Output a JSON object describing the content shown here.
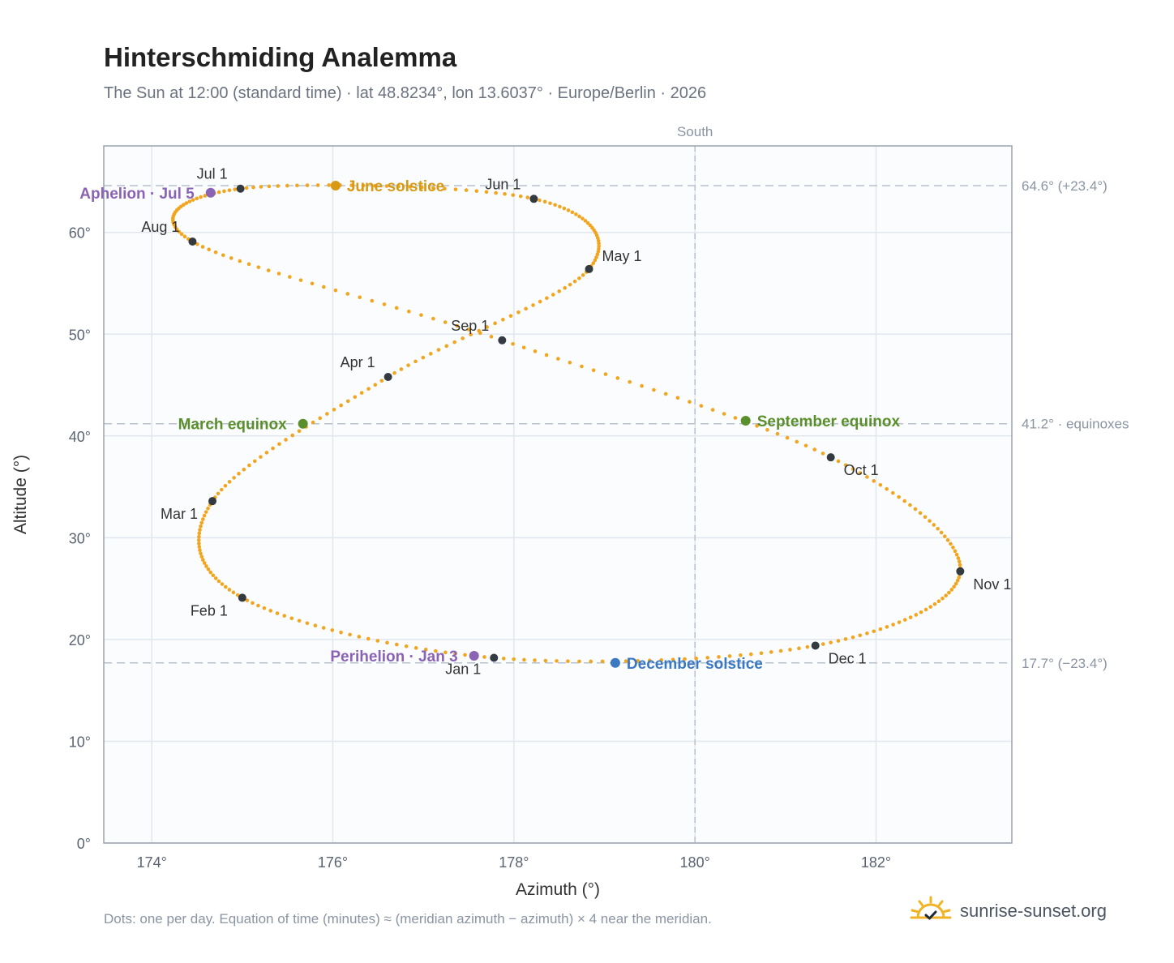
{
  "title": "Hinterschmiding Analemma",
  "subtitle": "The Sun at 12:00 (standard time) · lat 48.8234°, lon 13.6037° · Europe/Berlin · 2026",
  "footnote": "Dots: one per day. Equation of time (minutes) ≈ (meridian azimuth − azimuth) × 4 near the meridian.",
  "brand": {
    "name": "sunrise-sunset.org",
    "icon": "sun-check-icon"
  },
  "colors": {
    "curve": "#f2a51e",
    "month_dot": "#333a40",
    "june_solstice": "#d89a12",
    "december_solstice": "#3a78c2",
    "equinox": "#5a8f2c",
    "apsis": "#8a63b4",
    "plot_bg": "#fafcfe",
    "grid": "#e2e7ee",
    "ref_line": "#b8c2cf"
  },
  "chart_data": {
    "type": "scatter",
    "xlabel": "Azimuth (°)",
    "ylabel": "Altitude (°)",
    "xlim": [
      173.47,
      183.5
    ],
    "ylim": [
      0,
      68.5
    ],
    "x_ticks": [
      174,
      176,
      178,
      180,
      182
    ],
    "x_tick_labels": [
      "174°",
      "176°",
      "178°",
      "180°",
      "182°"
    ],
    "y_ticks": [
      0,
      10,
      20,
      30,
      40,
      50,
      60
    ],
    "y_tick_labels": [
      "0°",
      "10°",
      "20°",
      "30°",
      "40°",
      "50°",
      "60°"
    ],
    "grid": true,
    "meridian": {
      "x": 180,
      "label": "South"
    },
    "reference_lines": [
      {
        "y": 64.6,
        "label": "64.6° (+23.4°)"
      },
      {
        "y": 41.2,
        "label": "41.2° · equinoxes"
      },
      {
        "y": 17.7,
        "label": "17.7° (−23.4°)"
      }
    ],
    "month_points": [
      {
        "label": "Jan 1",
        "az": 177.78,
        "alt": 18.2,
        "label_pos": "below"
      },
      {
        "label": "Feb 1",
        "az": 175.0,
        "alt": 24.1,
        "label_pos": "below-left"
      },
      {
        "label": "Mar 1",
        "az": 174.67,
        "alt": 33.6,
        "label_pos": "below-left"
      },
      {
        "label": "Apr 1",
        "az": 176.61,
        "alt": 45.8,
        "label_pos": "above-left"
      },
      {
        "label": "May 1",
        "az": 178.83,
        "alt": 56.4,
        "label_pos": "above-right"
      },
      {
        "label": "Jun 1",
        "az": 178.22,
        "alt": 63.3,
        "label_pos": "above-left"
      },
      {
        "label": "Jul 1",
        "az": 174.98,
        "alt": 64.3,
        "label_pos": "above-left"
      },
      {
        "label": "Aug 1",
        "az": 174.45,
        "alt": 59.1,
        "label_pos": "above-left"
      },
      {
        "label": "Sep 1",
        "az": 177.87,
        "alt": 49.4,
        "label_pos": "above-left"
      },
      {
        "label": "Oct 1",
        "az": 181.5,
        "alt": 37.9,
        "label_pos": "below-right"
      },
      {
        "label": "Nov 1",
        "az": 182.93,
        "alt": 26.7,
        "label_pos": "below-right"
      },
      {
        "label": "Dec 1",
        "az": 181.33,
        "alt": 19.4,
        "label_pos": "below-right"
      }
    ],
    "events": [
      {
        "label": "June solstice",
        "az": 176.03,
        "alt": 64.6,
        "color_key": "june_solstice",
        "label_pos": "right"
      },
      {
        "label": "December solstice",
        "az": 179.12,
        "alt": 17.7,
        "color_key": "december_solstice",
        "label_pos": "right"
      },
      {
        "label": "March equinox",
        "az": 175.67,
        "alt": 41.2,
        "color_key": "equinox",
        "label_pos": "left"
      },
      {
        "label": "September equinox",
        "az": 180.56,
        "alt": 41.5,
        "color_key": "equinox",
        "label_pos": "right"
      },
      {
        "label": "Aphelion · Jul 5",
        "az": 174.65,
        "alt": 63.9,
        "color_key": "apsis",
        "label_pos": "left"
      },
      {
        "label": "Perihelion · Jan 3",
        "az": 177.56,
        "alt": 18.4,
        "color_key": "apsis",
        "label_pos": "left"
      }
    ]
  }
}
